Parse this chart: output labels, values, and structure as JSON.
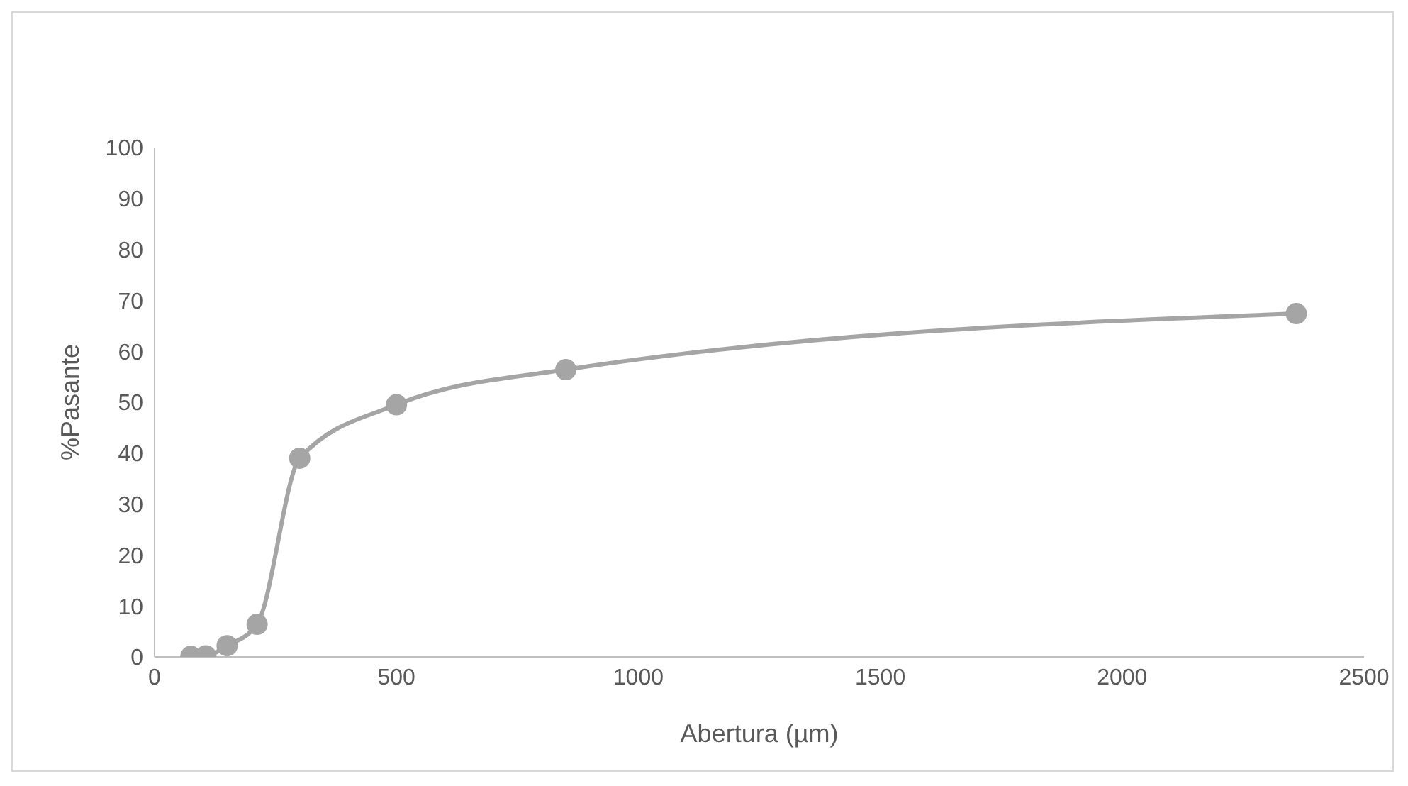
{
  "chart_data": {
    "type": "line",
    "xlabel": "Abertura (µm)",
    "ylabel": "%Pasante",
    "x": [
      75,
      106,
      150,
      212,
      300,
      500,
      850,
      2360
    ],
    "series": [
      {
        "color": "#a5a5a5",
        "values": [
          0.1,
          0.2,
          2.2,
          6.4,
          39,
          49.5,
          56.4,
          67.4
        ]
      }
    ],
    "xlim": [
      0,
      2500
    ],
    "xticks": [
      0,
      500,
      1000,
      1500,
      2000,
      2500
    ],
    "ylim": [
      0,
      100
    ],
    "yticks": [
      0,
      10,
      20,
      30,
      40,
      50,
      60,
      70,
      80,
      90,
      100
    ],
    "grid": false,
    "legend": false,
    "marker": "circle",
    "line_style": "solid"
  }
}
